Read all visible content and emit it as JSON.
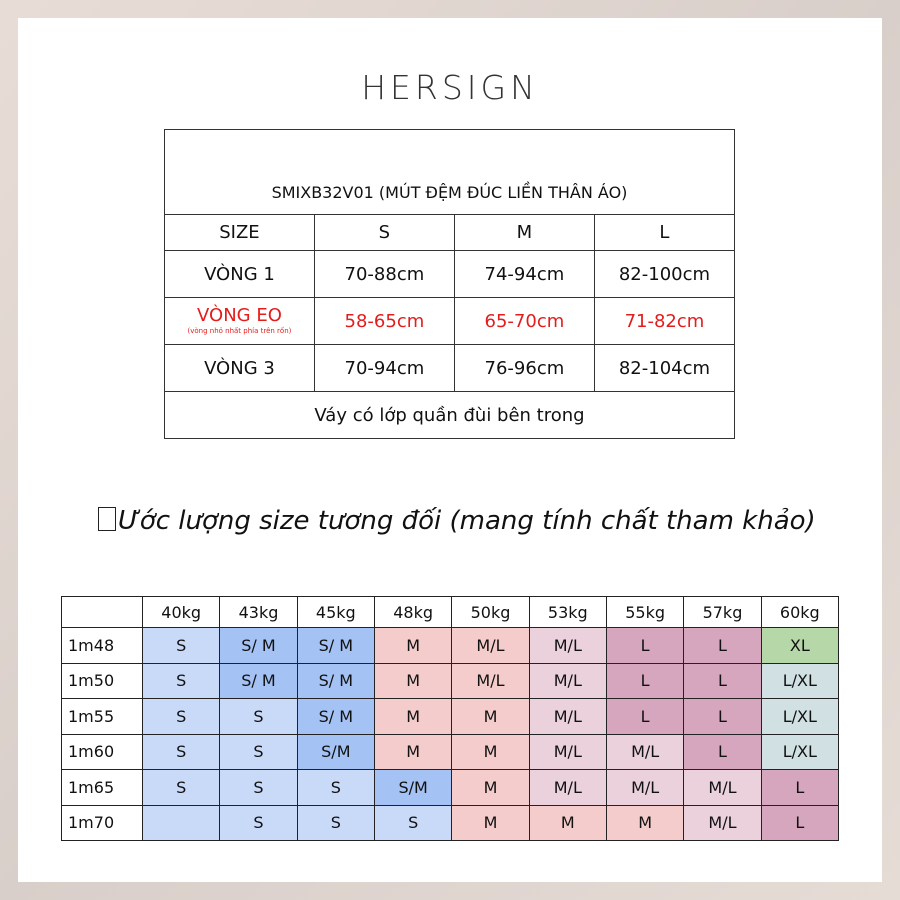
{
  "brand": "HERSIGN",
  "size_table": {
    "title": "SMIXB32V01 (MÚT ĐỆM ĐÚC LIỀN THÂN ÁO)",
    "header": [
      "SIZE",
      "S",
      "M",
      "L"
    ],
    "rows": [
      {
        "label": "VÒNG 1",
        "values": [
          "70-88cm",
          "74-94cm",
          "82-100cm"
        ]
      },
      {
        "label": "VÒNG EO",
        "sublabel": "(vòng nhỏ nhất phía trên rốn)",
        "values": [
          "58-65cm",
          "65-70cm",
          "71-82cm"
        ]
      },
      {
        "label": "VÒNG 3",
        "values": [
          "70-94cm",
          "76-96cm",
          "82-104cm"
        ]
      }
    ],
    "footer": "Váy có lớp quần đùi bên trong"
  },
  "estimate_heading": "Ước lượng size tương đối (mang tính chất tham khảo)",
  "grid": {
    "weights": [
      "40kg",
      "43kg",
      "45kg",
      "48kg",
      "50kg",
      "53kg",
      "55kg",
      "57kg",
      "60kg"
    ],
    "rows": [
      {
        "height": "1m48",
        "cells": [
          "S",
          "S/ M",
          "S/ M",
          "M",
          "M/L",
          "M/L",
          "L",
          "L",
          "XL"
        ]
      },
      {
        "height": "1m50",
        "cells": [
          "S",
          "S/ M",
          "S/ M",
          "M",
          "M/L",
          "M/L",
          "L",
          "L",
          "L/XL"
        ]
      },
      {
        "height": "1m55",
        "cells": [
          "S",
          "S",
          "S/ M",
          "M",
          "M",
          "M/L",
          "L",
          "L",
          "L/XL"
        ]
      },
      {
        "height": "1m60",
        "cells": [
          "S",
          "S",
          "S/M",
          "M",
          "M",
          "M/L",
          "M/L",
          "L",
          "L/XL"
        ]
      },
      {
        "height": "1m65",
        "cells": [
          "S",
          "S",
          "S",
          "S/M",
          "M",
          "M/L",
          "M/L",
          "M/L",
          "L"
        ]
      },
      {
        "height": "1m70",
        "cells": [
          "",
          "S",
          "S",
          "S",
          "M",
          "M",
          "M",
          "M/L",
          "L"
        ]
      }
    ],
    "colors": [
      [
        "#c9daf8",
        "#a4c2f4",
        "#a4c2f4",
        "#f4cccc",
        "#f4cccc",
        "#ead1dc",
        "#d5a6bd",
        "#d5a6bd",
        "#b6d7a8"
      ],
      [
        "#c9daf8",
        "#a4c2f4",
        "#a4c2f4",
        "#f4cccc",
        "#f4cccc",
        "#ead1dc",
        "#d5a6bd",
        "#d5a6bd",
        "#d0e0e3"
      ],
      [
        "#c9daf8",
        "#c9daf8",
        "#a4c2f4",
        "#f4cccc",
        "#f4cccc",
        "#ead1dc",
        "#d5a6bd",
        "#d5a6bd",
        "#d0e0e3"
      ],
      [
        "#c9daf8",
        "#c9daf8",
        "#a4c2f4",
        "#f4cccc",
        "#f4cccc",
        "#ead1dc",
        "#ead1dc",
        "#d5a6bd",
        "#d0e0e3"
      ],
      [
        "#c9daf8",
        "#c9daf8",
        "#c9daf8",
        "#a4c2f4",
        "#f4cccc",
        "#ead1dc",
        "#ead1dc",
        "#ead1dc",
        "#d5a6bd"
      ],
      [
        "#c9daf8",
        "#c9daf8",
        "#c9daf8",
        "#c9daf8",
        "#f4cccc",
        "#f4cccc",
        "#f4cccc",
        "#ead1dc",
        "#d5a6bd"
      ]
    ]
  },
  "accent_red": "#e41c1c"
}
